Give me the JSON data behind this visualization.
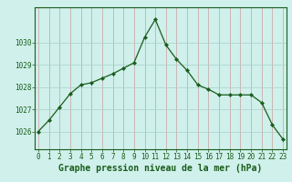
{
  "x": [
    0,
    1,
    2,
    3,
    4,
    5,
    6,
    7,
    8,
    9,
    10,
    11,
    12,
    13,
    14,
    15,
    16,
    17,
    18,
    19,
    20,
    21,
    22,
    23
  ],
  "y": [
    1026.0,
    1026.5,
    1027.1,
    1027.7,
    1028.1,
    1028.2,
    1028.4,
    1028.6,
    1028.85,
    1029.1,
    1030.25,
    1031.05,
    1029.9,
    1029.25,
    1028.75,
    1028.1,
    1027.9,
    1027.65,
    1027.65,
    1027.65,
    1027.65,
    1027.3,
    1026.3,
    1025.65
  ],
  "line_color": "#1a5c1a",
  "marker": "D",
  "marker_size": 2.2,
  "bg_color": "#cff0eb",
  "grid_color_v": "#c8a0a0",
  "grid_color_h": "#aad0ca",
  "xlabel": "Graphe pression niveau de la mer (hPa)",
  "xlabel_fontsize": 7,
  "ylabel_ticks": [
    1026,
    1027,
    1028,
    1029,
    1030
  ],
  "xlim": [
    -0.3,
    23.3
  ],
  "ylim": [
    1025.2,
    1031.6
  ],
  "tick_fontsize": 5.5
}
